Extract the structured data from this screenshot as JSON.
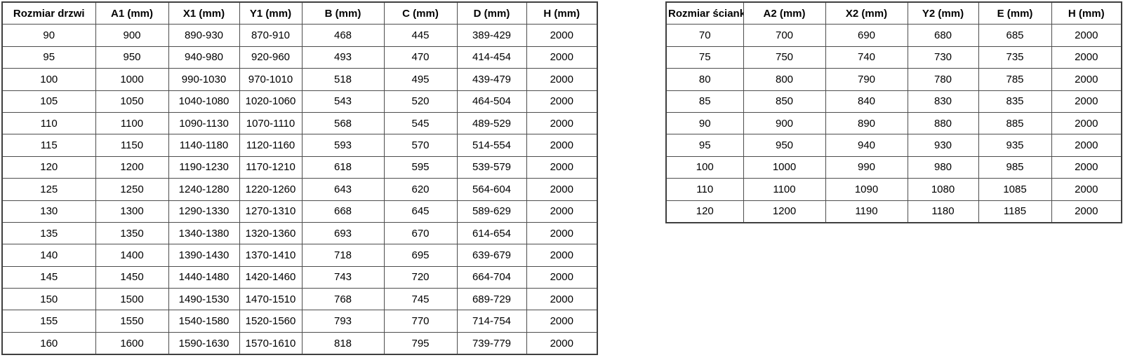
{
  "page": {
    "background_color": "#ffffff",
    "border_color": "#4d4d4d",
    "text_color": "#000000"
  },
  "door_table": {
    "headers": [
      "Rozmiar drzwi",
      "A1 (mm)",
      "X1 (mm)",
      "Y1 (mm)",
      "B (mm)",
      "C (mm)",
      "D (mm)",
      "H (mm)"
    ],
    "rows": [
      [
        "90",
        "900",
        "890-930",
        "870-910",
        "468",
        "445",
        "389-429",
        "2000"
      ],
      [
        "95",
        "950",
        "940-980",
        "920-960",
        "493",
        "470",
        "414-454",
        "2000"
      ],
      [
        "100",
        "1000",
        "990-1030",
        "970-1010",
        "518",
        "495",
        "439-479",
        "2000"
      ],
      [
        "105",
        "1050",
        "1040-1080",
        "1020-1060",
        "543",
        "520",
        "464-504",
        "2000"
      ],
      [
        "110",
        "1100",
        "1090-1130",
        "1070-1110",
        "568",
        "545",
        "489-529",
        "2000"
      ],
      [
        "115",
        "1150",
        "1140-1180",
        "1120-1160",
        "593",
        "570",
        "514-554",
        "2000"
      ],
      [
        "120",
        "1200",
        "1190-1230",
        "1170-1210",
        "618",
        "595",
        "539-579",
        "2000"
      ],
      [
        "125",
        "1250",
        "1240-1280",
        "1220-1260",
        "643",
        "620",
        "564-604",
        "2000"
      ],
      [
        "130",
        "1300",
        "1290-1330",
        "1270-1310",
        "668",
        "645",
        "589-629",
        "2000"
      ],
      [
        "135",
        "1350",
        "1340-1380",
        "1320-1360",
        "693",
        "670",
        "614-654",
        "2000"
      ],
      [
        "140",
        "1400",
        "1390-1430",
        "1370-1410",
        "718",
        "695",
        "639-679",
        "2000"
      ],
      [
        "145",
        "1450",
        "1440-1480",
        "1420-1460",
        "743",
        "720",
        "664-704",
        "2000"
      ],
      [
        "150",
        "1500",
        "1490-1530",
        "1470-1510",
        "768",
        "745",
        "689-729",
        "2000"
      ],
      [
        "155",
        "1550",
        "1540-1580",
        "1520-1560",
        "793",
        "770",
        "714-754",
        "2000"
      ],
      [
        "160",
        "1600",
        "1590-1630",
        "1570-1610",
        "818",
        "795",
        "739-779",
        "2000"
      ]
    ]
  },
  "wall_table": {
    "headers": [
      "Rozmiar ścianki",
      "A2 (mm)",
      "X2 (mm)",
      "Y2 (mm)",
      "E (mm)",
      "H (mm)"
    ],
    "rows": [
      [
        "70",
        "700",
        "690",
        "680",
        "685",
        "2000"
      ],
      [
        "75",
        "750",
        "740",
        "730",
        "735",
        "2000"
      ],
      [
        "80",
        "800",
        "790",
        "780",
        "785",
        "2000"
      ],
      [
        "85",
        "850",
        "840",
        "830",
        "835",
        "2000"
      ],
      [
        "90",
        "900",
        "890",
        "880",
        "885",
        "2000"
      ],
      [
        "95",
        "950",
        "940",
        "930",
        "935",
        "2000"
      ],
      [
        "100",
        "1000",
        "990",
        "980",
        "985",
        "2000"
      ],
      [
        "110",
        "1100",
        "1090",
        "1080",
        "1085",
        "2000"
      ],
      [
        "120",
        "1200",
        "1190",
        "1180",
        "1185",
        "2000"
      ]
    ]
  }
}
